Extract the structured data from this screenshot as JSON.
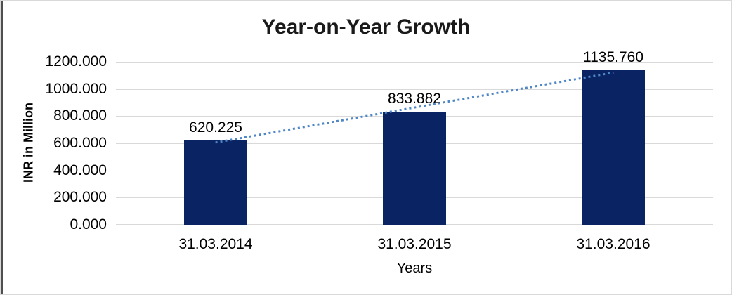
{
  "chart_data": {
    "type": "bar",
    "title": "Year-on-Year Growth",
    "xlabel": "Years",
    "ylabel": "INR in Million",
    "categories": [
      "31.03.2014",
      "31.03.2015",
      "31.03.2016"
    ],
    "values": [
      620.225,
      833.882,
      1135.76
    ],
    "data_labels": [
      "620.225",
      "833.882",
      "1135.760"
    ],
    "ylim": [
      0,
      1200
    ],
    "ytick_step": 200,
    "ytick_labels": [
      "0.000",
      "200.000",
      "400.000",
      "600.000",
      "800.000",
      "1000.000",
      "1200.000"
    ],
    "grid": true,
    "legend": false,
    "trendline": {
      "type": "linear",
      "style": "dotted"
    },
    "colors": {
      "bar": "#0a2463",
      "trendline": "#4f86c6",
      "gridline": "#d9d9d9",
      "text": "#000000",
      "title_text": "#1a1a1a",
      "frame_light": "#d9d9d9",
      "frame_dark": "#4f4f4f"
    }
  }
}
